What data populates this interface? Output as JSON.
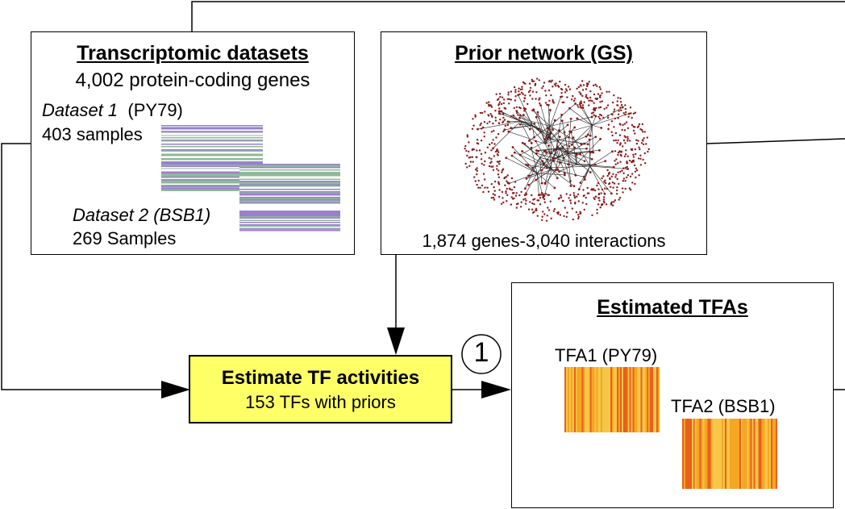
{
  "transcriptomic": {
    "title": "Transcriptomic datasets",
    "genes": "4,002 protein-coding genes",
    "dataset1_name": "Dataset 1",
    "dataset1_strain": "(PY79)",
    "dataset1_samples": "403 samples",
    "dataset2_label": "Dataset 2 (BSB1)",
    "dataset2_samples": "269 Samples"
  },
  "prior": {
    "title": "Prior network (GS)",
    "stats": "1,874 genes-3,040 interactions"
  },
  "estimate": {
    "title": "Estimate TF activities",
    "subtitle": "153 TFs with priors",
    "fill_color": "#ffff66"
  },
  "step_marker": "1",
  "tfas": {
    "title": "Estimated TFAs",
    "tfa1_label": "TFA1 (PY79)",
    "tfa2_label": "TFA2 (BSB1)"
  },
  "colors": {
    "heatmap_expression": [
      "#9a7fd1",
      "#8fb89a",
      "#ffffff"
    ],
    "heatmap_tfa": [
      "#f5a623",
      "#e8601c",
      "#f7c648"
    ],
    "network_nodes": "#8b1a1a"
  }
}
